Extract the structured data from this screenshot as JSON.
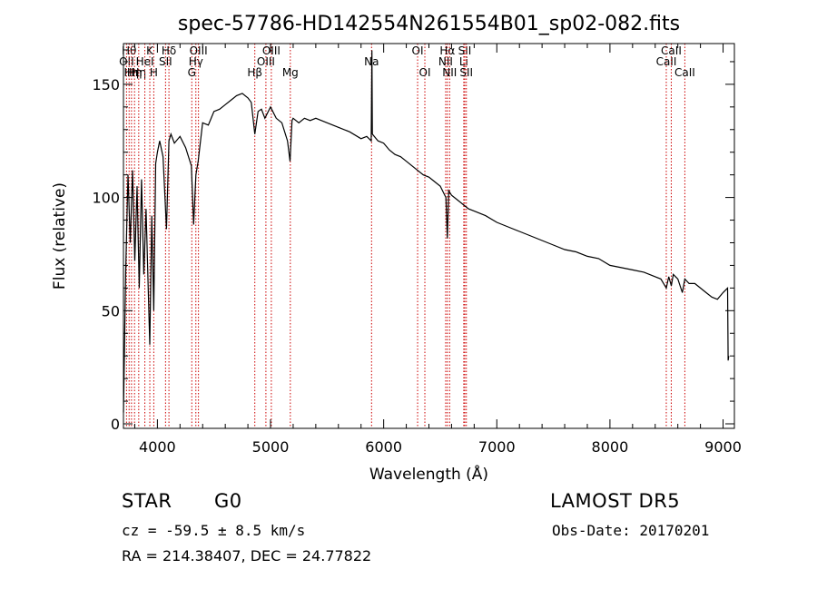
{
  "chart_data": {
    "type": "line",
    "title": "spec-57786-HD142554N261554B01_sp02-082.fits",
    "xlabel": "Wavelength (Å)",
    "ylabel": "Flux (relative)",
    "xlim": [
      3700,
      9100
    ],
    "ylim": [
      -2,
      168
    ],
    "xticks": [
      4000,
      5000,
      6000,
      7000,
      8000,
      9000
    ],
    "yticks": [
      0,
      50,
      100,
      150
    ],
    "grid": false,
    "legend": "none",
    "series": [
      {
        "x": [
          3700,
          3720,
          3740,
          3760,
          3780,
          3800,
          3820,
          3840,
          3860,
          3880,
          3900,
          3920,
          3933,
          3950,
          3968,
          3985,
          4000,
          4020,
          4050,
          4080,
          4102,
          4120,
          4150,
          4200,
          4250,
          4300,
          4320,
          4340,
          4360,
          4400,
          4450,
          4500,
          4550,
          4600,
          4650,
          4700,
          4750,
          4800,
          4830,
          4861,
          4890,
          4920,
          4950,
          5000,
          5050,
          5100,
          5150,
          5172,
          5190,
          5200,
          5250,
          5300,
          5350,
          5400,
          5450,
          5500,
          5600,
          5700,
          5800,
          5850,
          5890,
          5896,
          5900,
          5950,
          6000,
          6050,
          6100,
          6150,
          6200,
          6250,
          6300,
          6350,
          6400,
          6450,
          6500,
          6550,
          6563,
          6575,
          6600,
          6650,
          6700,
          6750,
          6800,
          6900,
          7000,
          7100,
          7200,
          7300,
          7400,
          7500,
          7600,
          7700,
          7800,
          7900,
          8000,
          8100,
          8200,
          8300,
          8400,
          8450,
          8498,
          8520,
          8542,
          8560,
          8600,
          8640,
          8662,
          8680,
          8700,
          8750,
          8800,
          8850,
          8900,
          8950,
          9000,
          9040,
          9045,
          9050
        ],
        "values": [
          5,
          68,
          110,
          80,
          112,
          72,
          105,
          60,
          108,
          66,
          95,
          58,
          35,
          92,
          50,
          115,
          120,
          125,
          118,
          86,
          125,
          128,
          124,
          127,
          122,
          114,
          88,
          110,
          116,
          133,
          132,
          138,
          139,
          141,
          143,
          145,
          146,
          144,
          142,
          128,
          138,
          139,
          135,
          140,
          135,
          133,
          125,
          116,
          134,
          135,
          133,
          135,
          134,
          135,
          134,
          133,
          131,
          129,
          126,
          127,
          125,
          165,
          128,
          125,
          124,
          121,
          119,
          118,
          116,
          114,
          112,
          110,
          109,
          107,
          105,
          100,
          82,
          103,
          101,
          99,
          97,
          95,
          94,
          92,
          89,
          87,
          85,
          83,
          81,
          79,
          77,
          76,
          74,
          73,
          70,
          69,
          68,
          67,
          65,
          64,
          60,
          65,
          61,
          66,
          64,
          58,
          64,
          63,
          62,
          62,
          60,
          58,
          56,
          55,
          58,
          60,
          28,
          30
        ]
      }
    ],
    "lines": [
      {
        "x": 3727,
        "label": "OII",
        "row": 2
      },
      {
        "x": 3750,
        "label": "Hθ",
        "row": 1
      },
      {
        "x": 3771,
        "label": "Hη",
        "row": 3
      },
      {
        "x": 3798,
        "label": "Hη",
        "row": 3
      },
      {
        "x": 3835,
        "label": "Hη",
        "row": 3
      },
      {
        "x": 3889,
        "label": "HeI",
        "row": 2
      },
      {
        "x": 3933,
        "label": "K",
        "row": 1
      },
      {
        "x": 3968,
        "label": "H",
        "row": 3
      },
      {
        "x": 4072,
        "label": "SII",
        "row": 2
      },
      {
        "x": 4102,
        "label": "Hδ",
        "row": 1
      },
      {
        "x": 4304,
        "label": "G",
        "row": 3
      },
      {
        "x": 4340,
        "label": "Hγ",
        "row": 2
      },
      {
        "x": 4363,
        "label": "OIII",
        "row": 1
      },
      {
        "x": 4861,
        "label": "Hβ",
        "row": 3
      },
      {
        "x": 4959,
        "label": "OIII",
        "row": 2
      },
      {
        "x": 5007,
        "label": "OIII",
        "row": 1
      },
      {
        "x": 5175,
        "label": "Mg",
        "row": 3
      },
      {
        "x": 5893,
        "label": "Na",
        "row": 2
      },
      {
        "x": 6300,
        "label": "OI",
        "row": 1
      },
      {
        "x": 6364,
        "label": "OI",
        "row": 3
      },
      {
        "x": 6548,
        "label": "NII",
        "row": 2
      },
      {
        "x": 6563,
        "label": "Hα",
        "row": 1
      },
      {
        "x": 6583,
        "label": "NII",
        "row": 3
      },
      {
        "x": 6708,
        "label": "Li",
        "row": 2
      },
      {
        "x": 6717,
        "label": "SII",
        "row": 1
      },
      {
        "x": 6731,
        "label": "SII",
        "row": 3
      },
      {
        "x": 8498,
        "label": "CaII",
        "row": 2
      },
      {
        "x": 8542,
        "label": "CaII",
        "row": 1
      },
      {
        "x": 8662,
        "label": "CaII",
        "row": 3
      }
    ]
  },
  "info": {
    "object_class": "STAR",
    "subclass": "G0",
    "survey": "LAMOST DR5",
    "redshift": "cz = -59.5 ± 8.5 km/s",
    "obs_date": "Obs-Date: 20170201",
    "coords": "RA = 214.38407, DEC =  24.77822"
  }
}
